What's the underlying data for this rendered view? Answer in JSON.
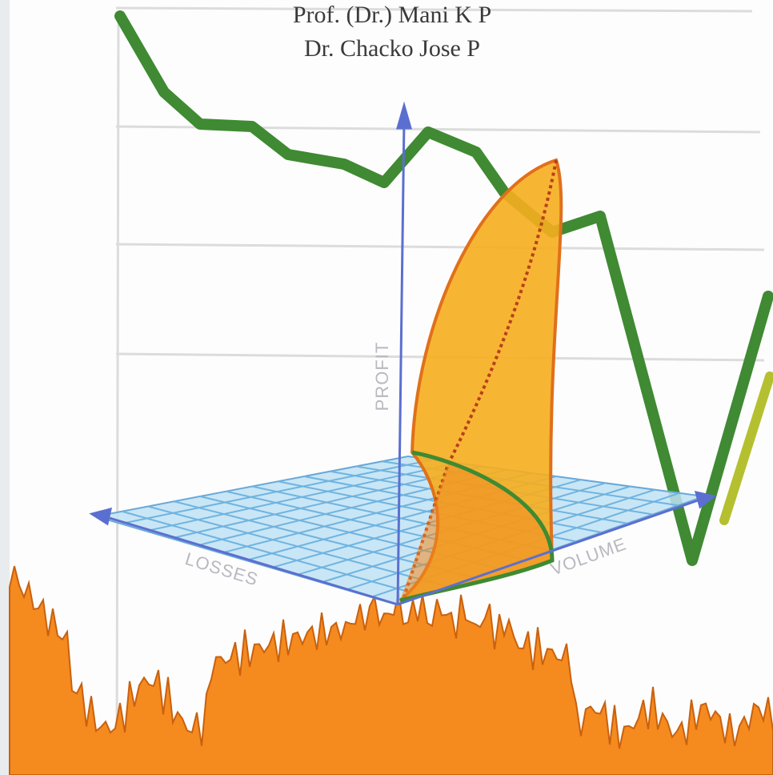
{
  "authors": [
    "Prof. (Dr.) Mani K P",
    "Dr. Chacko Jose P"
  ],
  "axis_labels": {
    "vertical": "PROFIT",
    "left": "LOSSES",
    "right": "VOLUME"
  }
}
